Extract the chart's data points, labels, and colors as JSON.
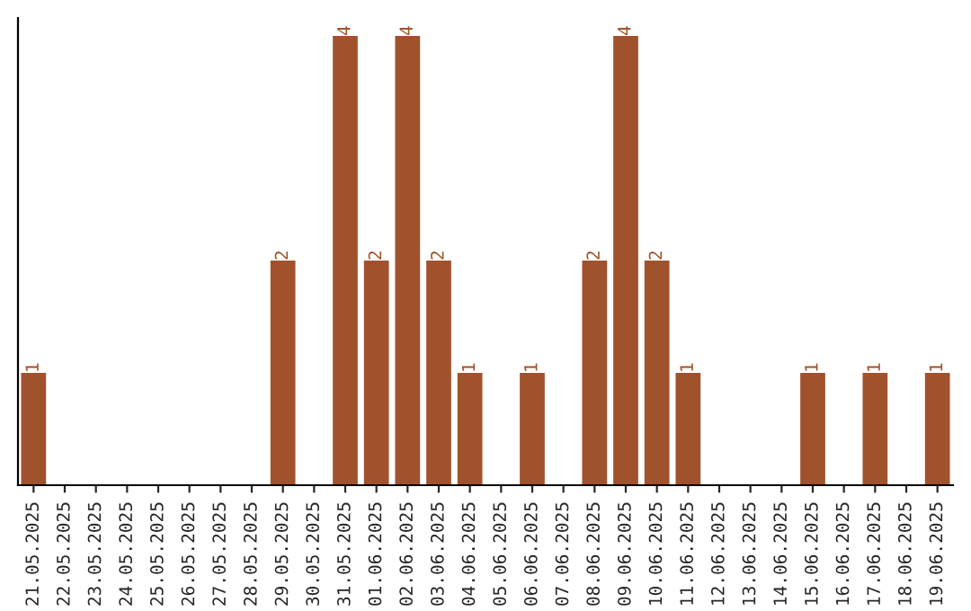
{
  "chart_data": {
    "type": "bar",
    "categories": [
      "21.05.2025",
      "22.05.2025",
      "23.05.2025",
      "24.05.2025",
      "25.05.2025",
      "26.05.2025",
      "27.05.2025",
      "28.05.2025",
      "29.05.2025",
      "30.05.2025",
      "31.05.2025",
      "01.06.2025",
      "02.06.2025",
      "03.06.2025",
      "04.06.2025",
      "05.06.2025",
      "06.06.2025",
      "07.06.2025",
      "08.06.2025",
      "09.06.2025",
      "10.06.2025",
      "11.06.2025",
      "12.06.2025",
      "13.06.2025",
      "14.06.2025",
      "15.06.2025",
      "16.06.2025",
      "17.06.2025",
      "18.06.2025",
      "19.06.2025"
    ],
    "values": [
      1,
      0,
      0,
      0,
      0,
      0,
      0,
      0,
      2,
      0,
      4,
      2,
      4,
      2,
      1,
      0,
      1,
      0,
      2,
      4,
      2,
      1,
      0,
      0,
      0,
      1,
      0,
      1,
      0,
      1
    ],
    "value_labels": [
      "1",
      null,
      null,
      null,
      null,
      null,
      null,
      null,
      "2",
      null,
      "4",
      "2",
      "4",
      "2",
      "1",
      null,
      "1",
      null,
      "2",
      "4",
      "2",
      "1",
      null,
      null,
      null,
      "1",
      null,
      "1",
      null,
      "1"
    ],
    "color": "#a0522d",
    "tick_labels": "x",
    "grid": false,
    "legend": false
  }
}
